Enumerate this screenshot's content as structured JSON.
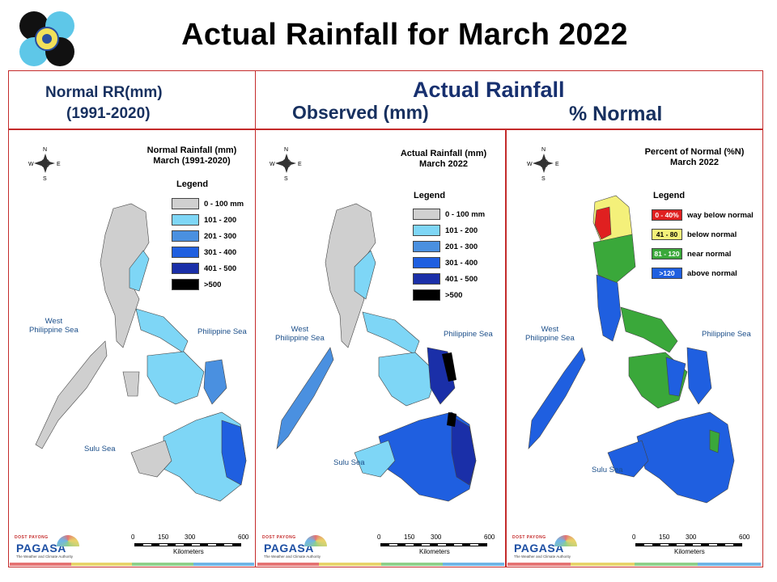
{
  "slide_title": "Actual Rainfall for March 2022",
  "headers": {
    "normal_line1": "Normal RR(mm)",
    "normal_line2": "(1991-2020)",
    "actual": "Actual Rainfall",
    "observed": "Observed (mm)",
    "pct_normal": "% Normal"
  },
  "panels": [
    {
      "title_line1": "Normal Rainfall (mm)",
      "title_line2": "March (1991-2020)",
      "legend_title": "Legend",
      "legend": [
        {
          "label": "0 - 100 mm",
          "color": "#d0d0d0"
        },
        {
          "label": "101 - 200",
          "color": "#7ed6f6"
        },
        {
          "label": "201 - 300",
          "color": "#4a90e0"
        },
        {
          "label": "301 - 400",
          "color": "#1f5fe0"
        },
        {
          "label": "401 - 500",
          "color": "#1a2fa8"
        },
        {
          "label": ">500",
          "color": "#000000"
        }
      ]
    },
    {
      "title_line1": "Actual Rainfall (mm)",
      "title_line2": "March 2022",
      "legend_title": "Legend",
      "legend": [
        {
          "label": "0 - 100 mm",
          "color": "#d0d0d0"
        },
        {
          "label": "101 - 200",
          "color": "#7ed6f6"
        },
        {
          "label": "201 - 300",
          "color": "#4a90e0"
        },
        {
          "label": "301 - 400",
          "color": "#1f5fe0"
        },
        {
          "label": "401 - 500",
          "color": "#1a2fa8"
        },
        {
          "label": ">500",
          "color": "#000000"
        }
      ]
    },
    {
      "title_line1": "Percent of Normal (%N)",
      "title_line2": "March 2022",
      "legend_title": "Legend",
      "legend": [
        {
          "swatch": "0 - 40%",
          "label": "way below normal",
          "color": "#e02020"
        },
        {
          "swatch": "41 - 80",
          "label": "below normal",
          "color": "#f4f07a"
        },
        {
          "swatch": "81 - 120",
          "label": "near normal",
          "color": "#3aa83a"
        },
        {
          "swatch": ">120",
          "label": "above normal",
          "color": "#1f5fe0"
        }
      ]
    }
  ],
  "labels": {
    "west_sea": "West\nPhilippine Sea",
    "ph_sea": "Philippine Sea",
    "sulu_sea": "Sulu Sea",
    "scale_ticks": [
      "0",
      "150",
      "300",
      "600"
    ],
    "scale_unit": "Kilometers",
    "compass": {
      "n": "N",
      "s": "S",
      "e": "E",
      "w": "W"
    },
    "footer_brand": "PAGASA",
    "footer_sub": "The Weather and Climate Authority",
    "footer_agency": "DOST PAYONG"
  },
  "colors": {
    "header_text": "#17305f",
    "frame_border": "#c42b2b",
    "footer_segments": [
      "#e57373",
      "#e8d36a",
      "#8fcf8a",
      "#6fb5e6"
    ]
  }
}
